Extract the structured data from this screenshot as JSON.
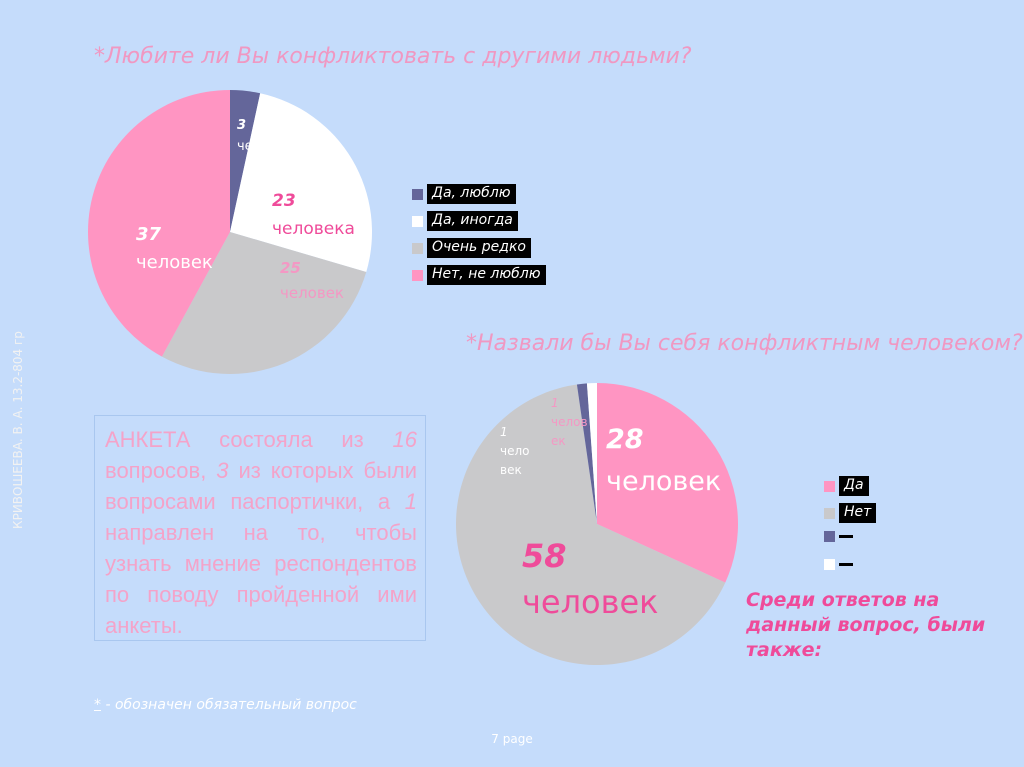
{
  "side_credit": "КРИВОШЕЕВА. В. А. 13.2-804 гр",
  "chart_data": [
    {
      "type": "pie",
      "title": "*Любите ли Вы конфликтовать с другими людьми?",
      "slices": [
        {
          "legend": "Да, люблю",
          "value": 3,
          "num_label": "3",
          "unit_label": "человека",
          "color": "#64669a"
        },
        {
          "legend": "Да, иногда",
          "value": 23,
          "num_label": "23",
          "unit_label": "человека",
          "color": "#ffffff"
        },
        {
          "legend": "Очень редко",
          "value": 25,
          "num_label": "25",
          "unit_label": "человек",
          "color": "#c9c9cb"
        },
        {
          "legend": "Нет, не люблю",
          "value": 37,
          "num_label": "37",
          "unit_label": "человек",
          "color": "#ff95c2"
        }
      ],
      "legend_placement": "right"
    },
    {
      "type": "pie",
      "title": "*Назвали бы Вы себя конфликтным человеком?",
      "slices": [
        {
          "legend": "Да",
          "value": 28,
          "num_label": "28",
          "unit_label": "человек",
          "color": "#ff95c2"
        },
        {
          "legend": "Нет",
          "value": 58,
          "num_label": "58",
          "unit_label": "человек",
          "color": "#c9c9cb"
        },
        {
          "legend": "",
          "value": 1,
          "num_label": "1",
          "unit_label": "чело век",
          "color": "#64669a"
        },
        {
          "legend": "",
          "value": 1,
          "num_label": "1",
          "unit_label": "челов ек",
          "color": "#ffffff"
        }
      ],
      "legend_placement": "right"
    }
  ],
  "info": {
    "p1": "АНКЕТА состояла из",
    "n1": "16",
    "p2": "вопросов,",
    "n2": "3",
    "p3": "из которых были вопросами паспортички, а",
    "n3": "1",
    "p4": "направлен на то, чтобы узнать мнение респондентов по поводу пройденной ими анкеты."
  },
  "note": "Среди ответов на данный вопрос, были также:",
  "footnote": {
    "star": "*",
    "text": " - обозначен обязательный вопрос"
  },
  "page_label": "7 page"
}
